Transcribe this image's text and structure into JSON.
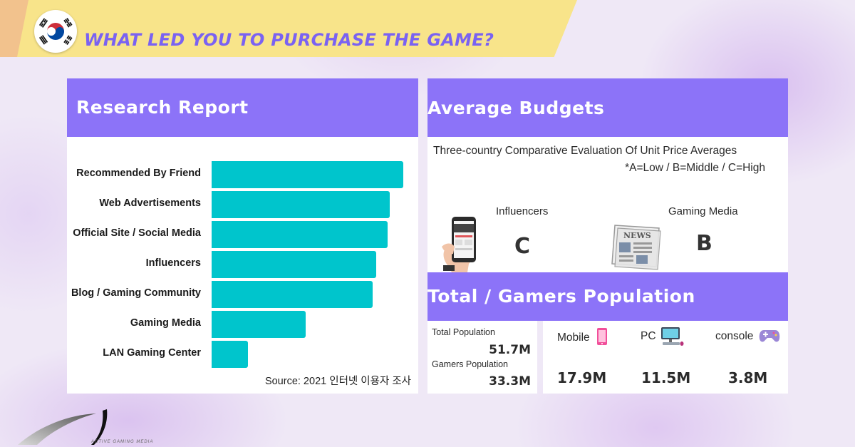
{
  "header": {
    "title": "WHAT LED YOU TO PURCHASE THE GAME?",
    "flag_icon": "south-korea-flag-icon"
  },
  "research": {
    "heading": "Research Report",
    "source": "Source: 2021 인터넷 이용자 조사"
  },
  "chart_data": {
    "type": "bar",
    "orientation": "horizontal",
    "title": "",
    "xlabel": "",
    "ylabel": "",
    "categories": [
      "Recommended By Friend",
      "Web Advertisements",
      "Official Site / Social Media",
      "Influencers",
      "Blog / Gaming Community",
      "Gaming Media",
      "LAN Gaming Center"
    ],
    "values": [
      100,
      93,
      92,
      86,
      84,
      49,
      19
    ],
    "xlim": [
      0,
      100
    ],
    "grid": false,
    "bar_color": "#00c5cc"
  },
  "budgets": {
    "heading": "Average Budgets",
    "subtitle": "Three-country Comparative Evaluation Of Unit Price Averages",
    "legend": "*A=Low / B=Middle / C=High",
    "items": [
      {
        "label": "Influencers",
        "grade": "C",
        "icon": "smartphone-in-hand-icon"
      },
      {
        "label": "Gaming Media",
        "grade": "B",
        "icon": "newspaper-icon"
      }
    ]
  },
  "population": {
    "heading": "Total / Gamers Population",
    "total_label": "Total Population",
    "total_value": "51.7M",
    "gamers_label": "Gamers Population",
    "gamers_value": "33.3M",
    "platforms": [
      {
        "label": "Mobile",
        "value": "17.9M",
        "icon": "mobile-phone-icon"
      },
      {
        "label": "PC",
        "value": "11.5M",
        "icon": "pc-computer-icon"
      },
      {
        "label": "console",
        "value": "3.8M",
        "icon": "gamepad-icon"
      }
    ]
  },
  "brand": {
    "name": "ACTIVE GAMING MEDIA",
    "logo_icon": "brand-swoosh-logo"
  },
  "colors": {
    "accent_purple": "#8c73f8",
    "title_purple": "#7a62f2",
    "bar_teal": "#00c5cc",
    "title_band_yellow": "#f8e48a"
  }
}
